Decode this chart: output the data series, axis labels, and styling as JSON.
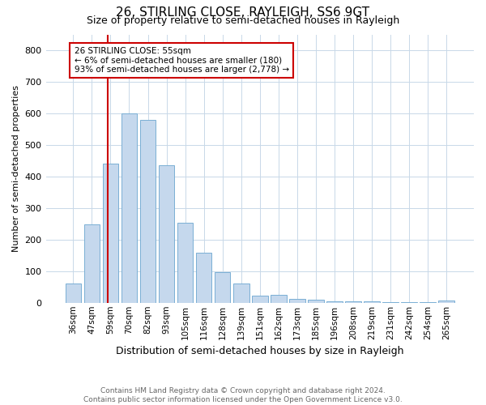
{
  "title": "26, STIRLING CLOSE, RAYLEIGH, SS6 9GT",
  "subtitle": "Size of property relative to semi-detached houses in Rayleigh",
  "xlabel": "Distribution of semi-detached houses by size in Rayleigh",
  "ylabel": "Number of semi-detached properties",
  "bar_labels": [
    "36sqm",
    "47sqm",
    "59sqm",
    "70sqm",
    "82sqm",
    "93sqm",
    "105sqm",
    "116sqm",
    "128sqm",
    "139sqm",
    "151sqm",
    "162sqm",
    "173sqm",
    "185sqm",
    "196sqm",
    "208sqm",
    "219sqm",
    "231sqm",
    "242sqm",
    "254sqm",
    "265sqm"
  ],
  "bar_values": [
    60,
    248,
    440,
    600,
    580,
    435,
    253,
    158,
    98,
    62,
    22,
    25,
    13,
    10,
    5,
    5,
    4,
    2,
    2,
    2,
    8
  ],
  "bar_color": "#c5d8ed",
  "bar_edge_color": "#7aafd4",
  "annotation_title": "26 STIRLING CLOSE: 55sqm",
  "annotation_line1": "← 6% of semi-detached houses are smaller (180)",
  "annotation_line2": "93% of semi-detached houses are larger (2,778) →",
  "annotation_box_color": "#ffffff",
  "annotation_box_edge": "#cc0000",
  "property_line_color": "#cc0000",
  "property_line_index": 1.85,
  "ylim": [
    0,
    850
  ],
  "yticks": [
    0,
    100,
    200,
    300,
    400,
    500,
    600,
    700,
    800
  ],
  "footer_line1": "Contains HM Land Registry data © Crown copyright and database right 2024.",
  "footer_line2": "Contains public sector information licensed under the Open Government Licence v3.0.",
  "background_color": "#ffffff",
  "grid_color": "#c8d8e8",
  "title_fontsize": 11,
  "subtitle_fontsize": 9,
  "xlabel_fontsize": 9,
  "ylabel_fontsize": 8,
  "tick_fontsize": 8,
  "xtick_fontsize": 7.5,
  "footer_fontsize": 6.5,
  "annotation_fontsize": 7.5
}
